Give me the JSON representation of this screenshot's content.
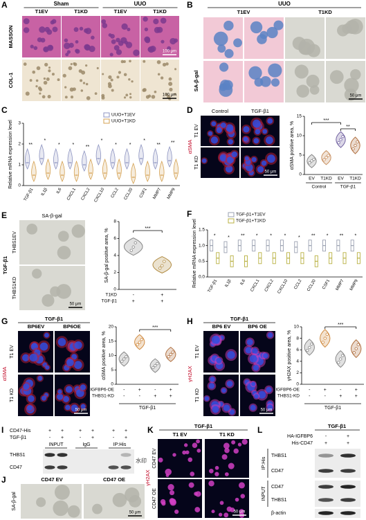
{
  "A": {
    "label": "A",
    "groups": [
      "Sham",
      "UUO"
    ],
    "columns": [
      "T1EV",
      "T1KD",
      "T1EV",
      "T1KD"
    ],
    "rows": [
      "MASSON",
      "COL-1"
    ],
    "scale_bars": [
      "100 μm",
      "100 μm"
    ]
  },
  "B": {
    "label": "B",
    "group": "UUO",
    "columns": [
      "T1EV",
      "T1KD"
    ],
    "row": "SA-β-gal",
    "scale_bar": "50 μm"
  },
  "C": {
    "label": "C",
    "type": "violin",
    "ylabel": "Relative mRNA expression level",
    "ylim": [
      0,
      3
    ],
    "yticks": [
      0,
      1,
      2,
      3
    ],
    "categories": [
      "TGF-β1",
      "IL1β",
      "IL6",
      "CXCL1",
      "CXCL2",
      "CXCL10",
      "CCL2",
      "CCL20",
      "CSF1",
      "MMP7",
      "MMP9"
    ],
    "series": [
      {
        "name": "UUO+T1EV",
        "color": "#8c93c0",
        "values": [
          1.1,
          1.3,
          1.1,
          1.1,
          1.0,
          1.3,
          1.1,
          1.1,
          1.3,
          1.1,
          1.2
        ]
      },
      {
        "name": "UUO+T1KD",
        "color": "#d4a050",
        "values": [
          0.5,
          0.6,
          0.5,
          0.5,
          0.6,
          0.6,
          0.6,
          0.4,
          0.5,
          0.5,
          0.6
        ]
      }
    ],
    "significance": [
      "**",
      "*",
      "*",
      "*",
      "**",
      "*",
      "*",
      "*",
      "*",
      "**",
      "**"
    ]
  },
  "D": {
    "label": "D",
    "columns": [
      "Control",
      "TGF-β1"
    ],
    "rows": [
      "T1 EV",
      "T1 KD"
    ],
    "stain": "αSMA",
    "scale_bar": "50 μm",
    "chart": {
      "type": "violin",
      "ylabel": "αSMA positive area, %",
      "ylim": [
        0,
        15
      ],
      "yticks": [
        0,
        5,
        10,
        15
      ],
      "categories": [
        "EV",
        "T1KD",
        "EV",
        "T1KD"
      ],
      "groups": [
        "Control",
        "TGF-β1"
      ],
      "colors": [
        "#888888",
        "#c89060",
        "#7060a0",
        "#b07040"
      ],
      "values": [
        [
          3.0,
          3.5,
          3.9
        ],
        [
          3.8,
          4.4,
          4.9
        ],
        [
          8.2,
          9.0,
          9.8
        ],
        [
          6.6,
          7.5,
          8.4
        ]
      ],
      "significance": [
        "***",
        "**"
      ]
    }
  },
  "E": {
    "label": "E",
    "image_title": "SA-β-gal",
    "side": "TGF-β1",
    "rows": [
      "THBS1EV",
      "THBS1KD"
    ],
    "scale_bar": "50 μm",
    "chart": {
      "type": "violin",
      "ylabel": "SA-β-gal positive area, %",
      "ylim": [
        0,
        8
      ],
      "yticks": [
        0,
        2,
        4,
        6,
        8
      ],
      "colors": [
        "#888888",
        "#b08a40"
      ],
      "values": [
        [
          4.6,
          5.0,
          5.5
        ],
        [
          2.5,
          2.8,
          3.3
        ]
      ],
      "significance": [
        "***"
      ],
      "conditions": [
        {
          "name": "T1KD",
          "signs": [
            "-",
            "+"
          ]
        },
        {
          "name": "TGF-β1",
          "signs": [
            "+",
            "+"
          ]
        }
      ]
    }
  },
  "F": {
    "label": "F",
    "type": "box",
    "ylabel": "Relative mRNA expression level",
    "ylim": [
      0,
      1.5
    ],
    "yticks": [
      {
        "value": 0,
        "label": "0.0"
      },
      {
        "value": 0.5,
        "label": "0.5"
      },
      {
        "value": 1,
        "label": "1.0"
      },
      {
        "value": 1.5,
        "label": "1.5"
      }
    ],
    "categories": [
      "TGF-β1",
      "IL1β",
      "IL6",
      "CXCL1",
      "CXCL2",
      "CXCL10",
      "CCL2",
      "CCL20",
      "CSF1",
      "MMP7",
      "MMP9"
    ],
    "series": [
      {
        "name": "TGF-β1+T1EV",
        "color": "#9aa0b0",
        "values": [
          1.0,
          0.95,
          1.0,
          1.0,
          1.0,
          1.0,
          0.95,
          1.0,
          1.0,
          1.0,
          1.0
        ]
      },
      {
        "name": "TGF-β1+T1KD",
        "color": "#b8b040",
        "values": [
          0.6,
          0.5,
          0.5,
          0.6,
          0.6,
          0.6,
          0.6,
          0.5,
          0.6,
          0.6,
          0.6
        ]
      }
    ],
    "significance": [
      "*",
      "*",
      "**",
      "*",
      "*",
      "*",
      "*",
      "**",
      "*",
      "**",
      "*"
    ]
  },
  "G": {
    "label": "G",
    "header": "TGF-β1",
    "columns": [
      "BP6EV",
      "BP6OE"
    ],
    "rows": [
      "T1 EV",
      "T1 KD"
    ],
    "stain": "αSMA",
    "scale_bar": "50 μm",
    "chart": {
      "type": "violin",
      "ylabel": "αSMA positive area, %",
      "ylim": [
        0,
        20
      ],
      "yticks": [
        0,
        5,
        10,
        15,
        20
      ],
      "colors": [
        "#888888",
        "#d08a40",
        "#888888",
        "#b07040"
      ],
      "values": [
        [
          8.0,
          8.8,
          9.6
        ],
        [
          13.8,
          14.6,
          15.6
        ],
        [
          5.8,
          6.5,
          7.2
        ],
        [
          9.6,
          10.4,
          11.2
        ]
      ],
      "significance": [
        "***"
      ],
      "conditions": [
        {
          "name": "IGFBP6-OE",
          "signs": [
            "-",
            "+",
            "-",
            "+"
          ]
        },
        {
          "name": "THBS1-KD",
          "signs": [
            "-",
            "-",
            "+",
            "+"
          ]
        }
      ],
      "footer": "TGF-β1"
    }
  },
  "H": {
    "label": "H",
    "header": "TGF-β1",
    "columns": [
      "BP6 EV",
      "BP6 OE"
    ],
    "rows": [
      "T1 EV",
      "T1 KD"
    ],
    "stain": "γH2AX",
    "scale_bar": "50 μm",
    "chart": {
      "type": "violin",
      "ylabel": "γH2AX positive area, %",
      "ylim": [
        0,
        10
      ],
      "yticks": [
        0,
        2,
        4,
        6,
        8,
        10
      ],
      "colors": [
        "#888888",
        "#d08a40",
        "#888888",
        "#b07040"
      ],
      "values": [
        [
          5.9,
          6.4,
          7.0
        ],
        [
          7.3,
          8.0,
          8.7
        ],
        [
          3.8,
          4.4,
          5.0
        ],
        [
          5.5,
          6.2,
          6.9
        ]
      ],
      "significance": [
        "***"
      ],
      "conditions": [
        {
          "name": "IGFBP6-OE",
          "signs": [
            "-",
            "+",
            "-",
            "+"
          ]
        },
        {
          "name": "THBS1-KD",
          "signs": [
            "-",
            "-",
            "+",
            "+"
          ]
        }
      ],
      "footer": "TGF-β1"
    }
  },
  "I": {
    "label": "I",
    "conditions": [
      {
        "name": "CD47-His",
        "signs": [
          "+",
          "+",
          "+",
          "+",
          "+",
          "+"
        ]
      },
      {
        "name": "TGF-β1",
        "signs": [
          "-",
          "+",
          "-",
          "+",
          "-",
          "+"
        ]
      }
    ],
    "lanes": [
      "INPUT",
      "IgG",
      "IP:His"
    ],
    "bands": [
      "THBS1",
      "CD47"
    ],
    "watermark": "水印"
  },
  "J": {
    "label": "J",
    "columns": [
      "CD47 EV",
      "CD47 OE"
    ],
    "row": "SA-β-gal",
    "scale_bar": "50 μm"
  },
  "K": {
    "label": "K",
    "header": "TGF-β1",
    "columns": [
      "T1 EV",
      "T1 KD"
    ],
    "rows": [
      "CD47 EV",
      "CD47 OE"
    ],
    "stain": "γH2AX",
    "scale_bar": "50 μm"
  },
  "L": {
    "label": "L",
    "header": "TGF-β1",
    "conditions": [
      {
        "name": "HA-IGFBP6",
        "signs": [
          "-",
          "+"
        ]
      },
      {
        "name": "His-CD47",
        "signs": [
          "+",
          "+"
        ]
      }
    ],
    "sections": [
      {
        "name": "IP:His",
        "bands": [
          "THBS1",
          "CD47"
        ]
      },
      {
        "name": "INPUT",
        "bands": [
          "CD47",
          "THBS1"
        ]
      }
    ],
    "loading": "β-actin"
  }
}
